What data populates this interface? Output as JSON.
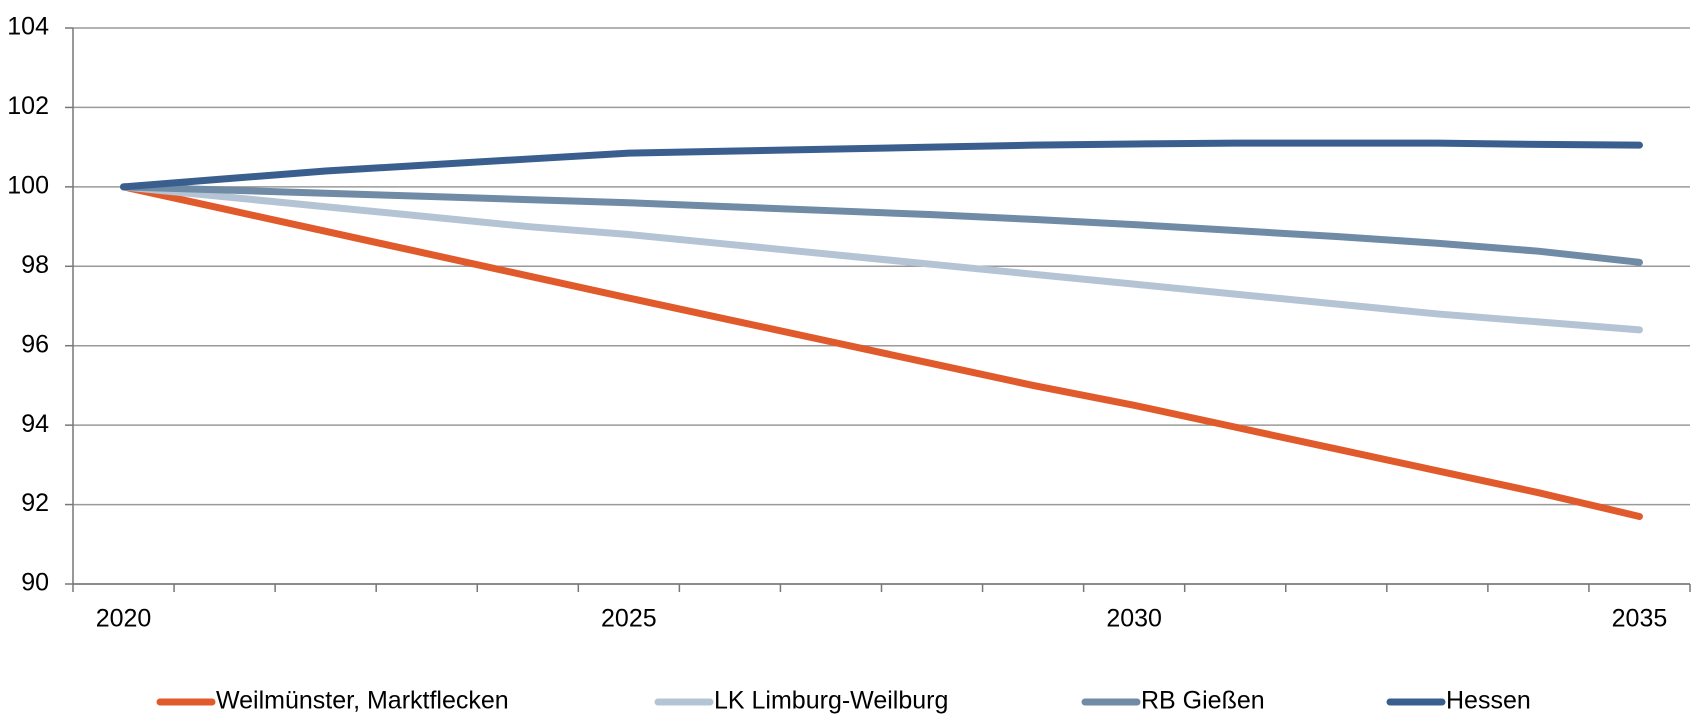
{
  "chart_data": {
    "type": "line",
    "categories": [
      "2020",
      null,
      null,
      null,
      null,
      "2025",
      null,
      null,
      null,
      null,
      "2030",
      null,
      null,
      null,
      null,
      "2035"
    ],
    "series": [
      {
        "name": "Weilmünster, Marktflecken",
        "color": "#e05a2b",
        "values": [
          100,
          99.44,
          98.88,
          98.32,
          97.76,
          97.2,
          96.65,
          96.1,
          95.55,
          95.0,
          94.5,
          93.95,
          93.4,
          92.85,
          92.3,
          91.7
        ]
      },
      {
        "name": "LK Limburg-Weilburg",
        "color": "#b4c4d4",
        "values": [
          100,
          99.75,
          99.5,
          99.25,
          99.0,
          98.8,
          98.55,
          98.3,
          98.05,
          97.8,
          97.55,
          97.3,
          97.05,
          96.8,
          96.6,
          96.4
        ]
      },
      {
        "name": "RB Gießen",
        "color": "#6f8ba5",
        "values": [
          100,
          99.92,
          99.84,
          99.76,
          99.68,
          99.6,
          99.5,
          99.4,
          99.3,
          99.18,
          99.05,
          98.9,
          98.75,
          98.58,
          98.38,
          98.1
        ]
      },
      {
        "name": "Hessen",
        "color": "#3a5f8f",
        "values": [
          100,
          100.2,
          100.4,
          100.55,
          100.7,
          100.85,
          100.9,
          100.95,
          101.0,
          101.05,
          101.08,
          101.1,
          101.1,
          101.1,
          101.07,
          101.05
        ]
      }
    ],
    "ylim": [
      90,
      104
    ],
    "yticks": [
      90,
      92,
      94,
      96,
      98,
      100,
      102,
      104
    ],
    "grid": true
  }
}
